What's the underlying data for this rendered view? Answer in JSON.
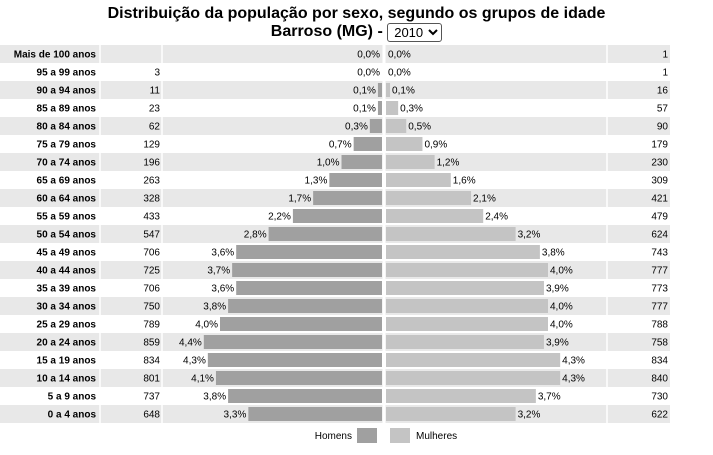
{
  "title": "Distribuição da população por sexo, segundo os grupos de idade",
  "location_label": "Barroso (MG) -",
  "year_select": {
    "selected": "2010",
    "options": [
      "2010"
    ]
  },
  "colors": {
    "men": "#a0a0a0",
    "women": "#c4c4c4",
    "stripe": "#e8e8e8",
    "axis": "#ffffff"
  },
  "chart_data": {
    "type": "bar",
    "orientation": "horizontal",
    "subtype": "population-pyramid",
    "categories": [
      "Mais de 100 anos",
      "95 a 99 anos",
      "90 a 94 anos",
      "85 a 89 anos",
      "80 a 84 anos",
      "75 a 79 anos",
      "70 a 74 anos",
      "65 a 69 anos",
      "60 a 64 anos",
      "55 a 59 anos",
      "50 a 54 anos",
      "45 a 49 anos",
      "40 a 44 anos",
      "35 a 39 anos",
      "30 a 34 anos",
      "25 a 29 anos",
      "20 a 24 anos",
      "15 a 19 anos",
      "10 a 14 anos",
      "5 a 9 anos",
      "0 a 4 anos"
    ],
    "series": [
      {
        "name": "Homens",
        "side": "left",
        "counts": [
          "",
          "3",
          "11",
          "23",
          "62",
          "129",
          "196",
          "263",
          "328",
          "433",
          "547",
          "706",
          "725",
          "706",
          "750",
          "789",
          "859",
          "834",
          "801",
          "737",
          "648"
        ],
        "percent_labels": [
          "0,0%",
          "0,0%",
          "0,1%",
          "0,1%",
          "0,3%",
          "0,7%",
          "1,0%",
          "1,3%",
          "1,7%",
          "2,2%",
          "2,8%",
          "3,6%",
          "3,7%",
          "3,6%",
          "3,8%",
          "4,0%",
          "4,4%",
          "4,3%",
          "4,1%",
          "3,8%",
          "3,3%"
        ],
        "percent": [
          0.0,
          0.0,
          0.1,
          0.1,
          0.3,
          0.7,
          1.0,
          1.3,
          1.7,
          2.2,
          2.8,
          3.6,
          3.7,
          3.6,
          3.8,
          4.0,
          4.4,
          4.3,
          4.1,
          3.8,
          3.3
        ]
      },
      {
        "name": "Mulheres",
        "side": "right",
        "counts": [
          "1",
          "1",
          "16",
          "57",
          "90",
          "179",
          "230",
          "309",
          "421",
          "479",
          "624",
          "743",
          "777",
          "773",
          "777",
          "788",
          "758",
          "834",
          "840",
          "730",
          "622"
        ],
        "percent_labels": [
          "0,0%",
          "0,0%",
          "0,1%",
          "0,3%",
          "0,5%",
          "0,9%",
          "1,2%",
          "1,6%",
          "2,1%",
          "2,4%",
          "3,2%",
          "3,8%",
          "4,0%",
          "3,9%",
          "4,0%",
          "4,0%",
          "3,9%",
          "4,3%",
          "4,3%",
          "3,7%",
          "3,2%"
        ],
        "percent": [
          0.0,
          0.0,
          0.1,
          0.3,
          0.5,
          0.9,
          1.2,
          1.6,
          2.1,
          2.4,
          3.2,
          3.8,
          4.0,
          3.9,
          4.0,
          4.0,
          3.9,
          4.3,
          4.3,
          3.7,
          3.2
        ]
      }
    ],
    "xlim_percent": [
      0,
      4.5
    ],
    "legend": [
      "Homens",
      "Mulheres"
    ],
    "legend_position": "bottom-center"
  }
}
